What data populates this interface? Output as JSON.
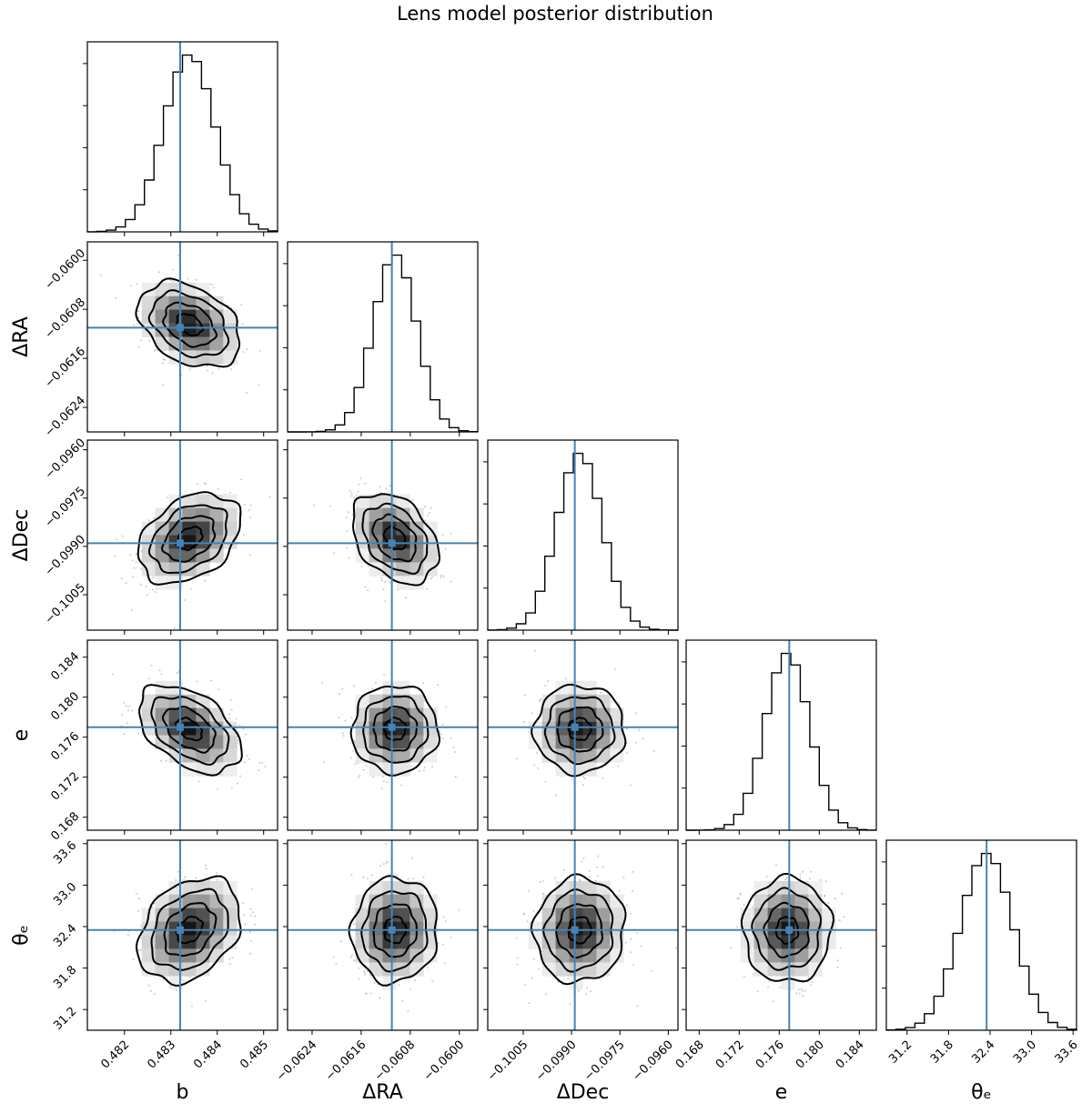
{
  "chart_data": {
    "type": "corner",
    "title": "Lens model posterior distribution",
    "truth_color": "#4682b4",
    "parameters": [
      {
        "key": "b",
        "label": "b",
        "truth": 0.4832,
        "mean": 0.4834,
        "sd": 0.00055,
        "range": [
          0.4812,
          0.4853
        ],
        "ticks": [
          0.482,
          0.483,
          0.484,
          0.485
        ],
        "tick_labels": [
          "0.482",
          "0.483",
          "0.484",
          "0.485"
        ]
      },
      {
        "key": "dRA",
        "label": "ΔRA",
        "truth": -0.0611,
        "mean": -0.06105,
        "sd": 0.00035,
        "range": [
          -0.0628,
          -0.0597
        ],
        "ticks": [
          -0.0624,
          -0.0616,
          -0.0608,
          -0.06
        ],
        "tick_labels": [
          "−0.0624",
          "−0.0616",
          "−0.0608",
          "−0.0600"
        ]
      },
      {
        "key": "dDec",
        "label": "ΔDec",
        "truth": -0.0989,
        "mean": -0.09875,
        "sd": 0.0007,
        "range": [
          -0.1016,
          -0.0957
        ],
        "ticks": [
          -0.1005,
          -0.099,
          -0.0975,
          -0.096
        ],
        "tick_labels": [
          "−0.1005",
          "−0.0990",
          "−0.0975",
          "−0.0960"
        ]
      },
      {
        "key": "e",
        "label": "e",
        "truth": 0.177,
        "mean": 0.1768,
        "sd": 0.0022,
        "range": [
          0.1667,
          0.1857
        ],
        "ticks": [
          0.168,
          0.172,
          0.176,
          0.18,
          0.184
        ],
        "tick_labels": [
          "0.168",
          "0.172",
          "0.176",
          "0.180",
          "0.184"
        ]
      },
      {
        "key": "theta_e",
        "label": "θₑ",
        "truth": 32.35,
        "mean": 32.35,
        "sd": 0.38,
        "range": [
          30.9,
          33.65
        ],
        "ticks": [
          31.2,
          31.8,
          32.4,
          33.0,
          33.6
        ],
        "tick_labels": [
          "31.2",
          "31.8",
          "32.4",
          "33.0",
          "33.6"
        ]
      }
    ],
    "correlations": {
      "b|dRA": -0.35,
      "b|dDec": 0.35,
      "dRA|dDec": -0.35,
      "b|e": -0.45,
      "dRA|e": 0.0,
      "dDec|e": 0.0,
      "b|theta_e": 0.3,
      "dRA|theta_e": 0.05,
      "dDec|theta_e": 0.05,
      "e|theta_e": 0.0
    },
    "histogram_bins": 20,
    "contour_levels_sigma": [
      0.5,
      1.0,
      1.5,
      2.0
    ]
  }
}
